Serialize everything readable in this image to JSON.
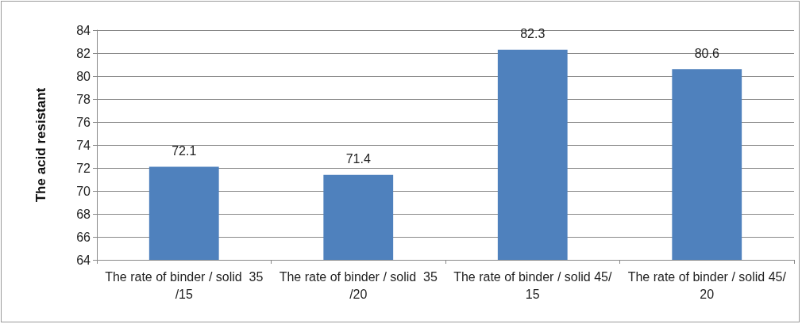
{
  "chart_data": {
    "type": "bar",
    "ylabel": "The acid resistant",
    "categories": [
      "The rate of binder / solid  35/15",
      "The rate of binder / solid  35/20",
      "The rate of binder / solid 45/15",
      "The rate of binder / solid 45/20"
    ],
    "values": [
      72.1,
      71.4,
      82.3,
      80.6
    ],
    "color": "#4f81bd",
    "ylim": [
      64,
      84
    ],
    "yticks": [
      64,
      66,
      68,
      70,
      72,
      74,
      76,
      78,
      80,
      82,
      84
    ],
    "grid": true,
    "data_labels": true
  }
}
